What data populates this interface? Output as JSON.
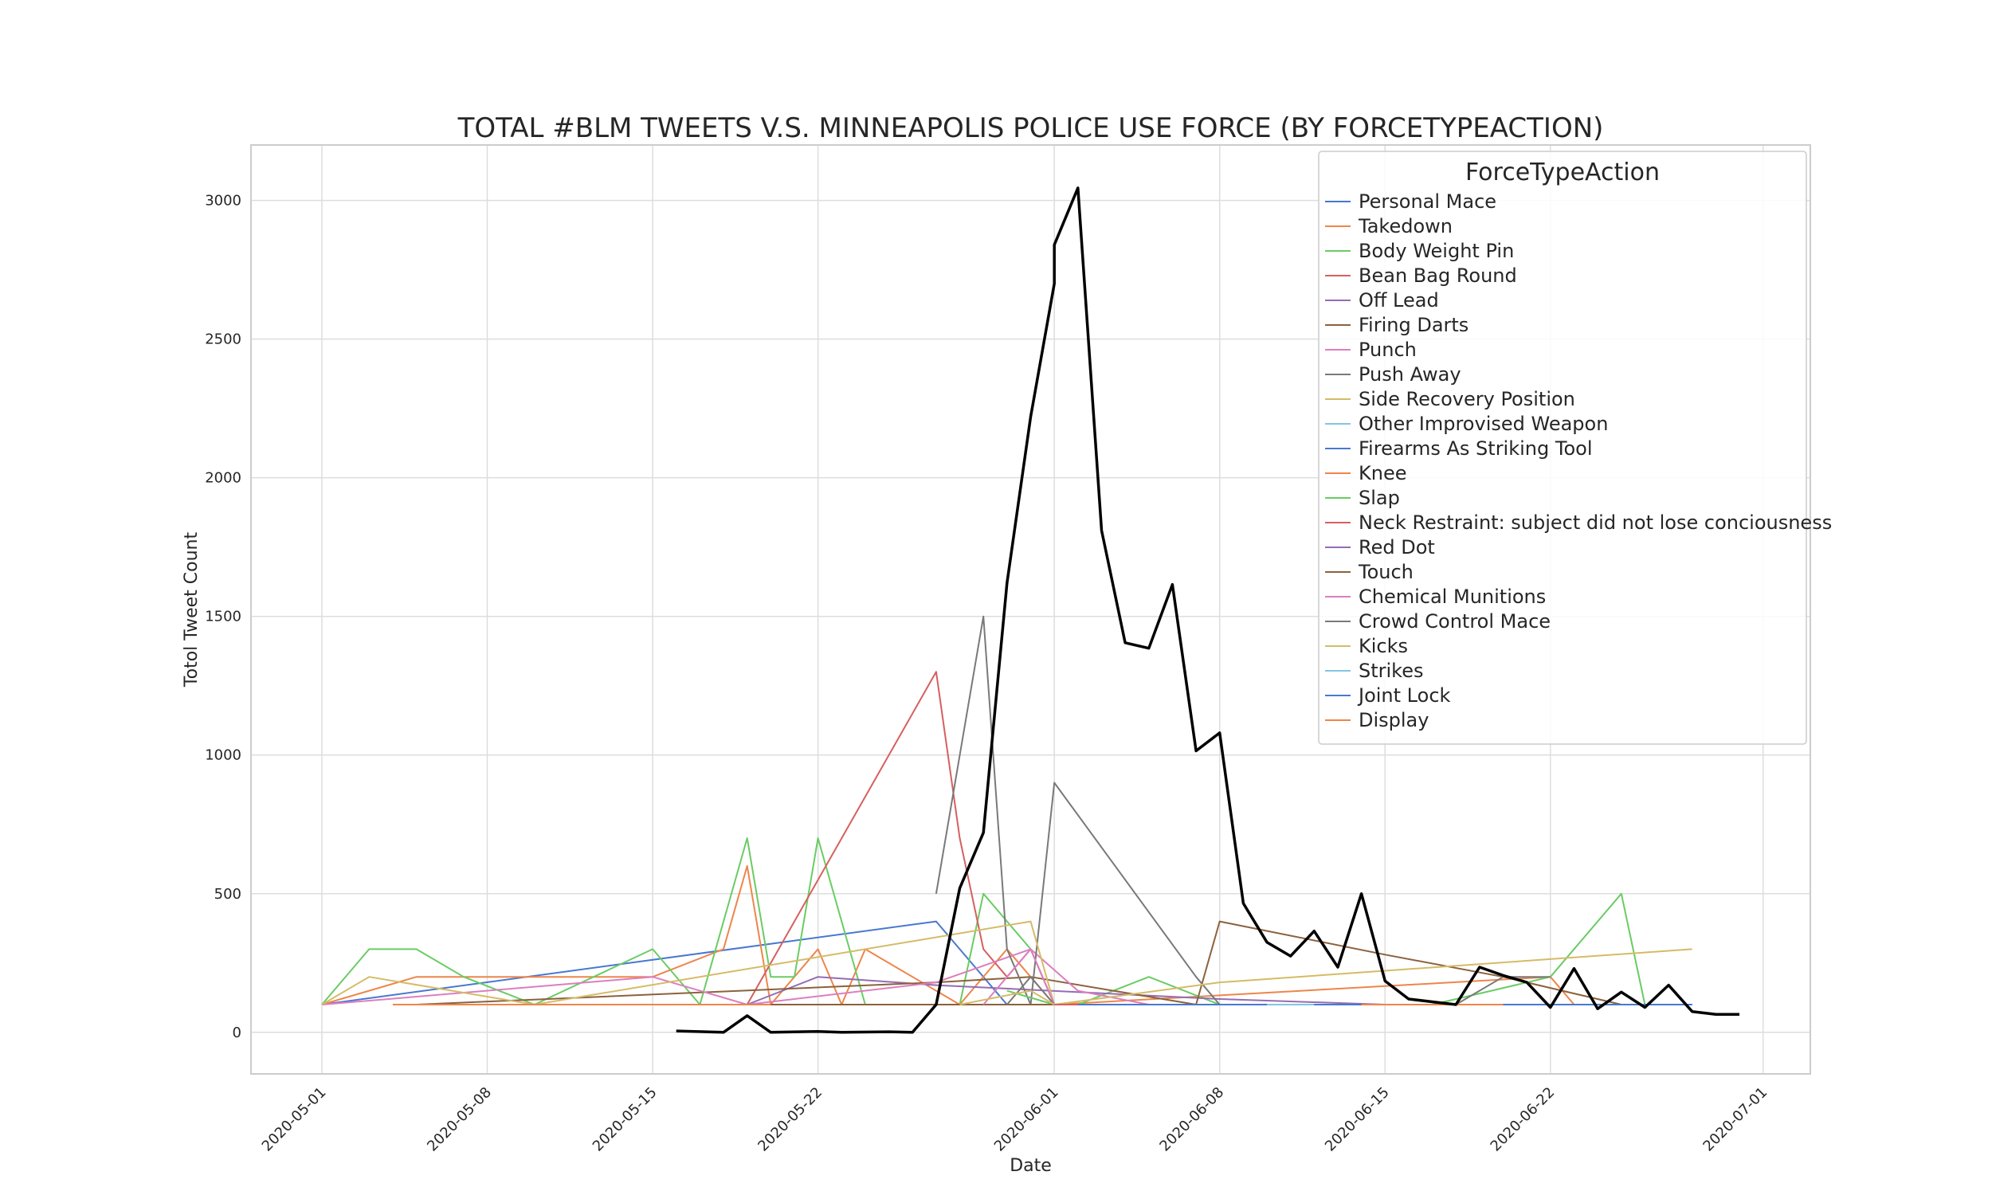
{
  "chart_data": {
    "type": "line",
    "title": "TOTAL #BLM TWEETS V.S. MINNEAPOLIS POLICE USE FORCE (BY FORCETYPEACTION)",
    "xlabel": "Date",
    "ylabel": "Totol Tweet Count",
    "x_ticks": [
      "2020-05-01",
      "2020-05-08",
      "2020-05-15",
      "2020-05-22",
      "2020-06-01",
      "2020-06-08",
      "2020-06-15",
      "2020-06-22",
      "2020-07-01"
    ],
    "y_ticks": [
      0,
      500,
      1000,
      1500,
      2000,
      2500,
      3000
    ],
    "xlim": [
      "2020-04-28",
      "2020-07-03"
    ],
    "ylim": [
      -150,
      3200
    ],
    "grid": true,
    "legend": {
      "title": "ForceTypeAction",
      "placement": "top-right"
    },
    "series": [
      {
        "name": "Personal Mace",
        "color": "#4878d0",
        "points": [
          [
            "2020-05-01",
            100
          ],
          [
            "2020-05-27",
            400
          ],
          [
            "2020-05-30",
            100
          ],
          [
            "2020-06-28",
            100
          ]
        ]
      },
      {
        "name": "Takedown",
        "color": "#ee854a",
        "points": [
          [
            "2020-05-01",
            100
          ],
          [
            "2020-05-05",
            200
          ],
          [
            "2020-05-15",
            200
          ],
          [
            "2020-05-18",
            300
          ],
          [
            "2020-05-19",
            600
          ],
          [
            "2020-05-20",
            100
          ],
          [
            "2020-05-22",
            300
          ],
          [
            "2020-05-23",
            100
          ],
          [
            "2020-05-24",
            300
          ],
          [
            "2020-05-26",
            200
          ],
          [
            "2020-05-28",
            100
          ],
          [
            "2020-05-30",
            300
          ],
          [
            "2020-06-01",
            100
          ],
          [
            "2020-06-22",
            200
          ],
          [
            "2020-06-23",
            100
          ]
        ]
      },
      {
        "name": "Body Weight Pin",
        "color": "#6acc64",
        "points": [
          [
            "2020-05-01",
            100
          ],
          [
            "2020-05-03",
            300
          ],
          [
            "2020-05-05",
            300
          ],
          [
            "2020-05-07",
            200
          ],
          [
            "2020-05-10",
            100
          ],
          [
            "2020-05-15",
            300
          ],
          [
            "2020-05-17",
            100
          ],
          [
            "2020-05-19",
            700
          ],
          [
            "2020-05-20",
            200
          ],
          [
            "2020-05-21",
            200
          ],
          [
            "2020-05-22",
            700
          ],
          [
            "2020-05-24",
            100
          ],
          [
            "2020-05-28",
            100
          ],
          [
            "2020-05-29",
            500
          ],
          [
            "2020-05-31",
            300
          ],
          [
            "2020-06-01",
            100
          ],
          [
            "2020-06-02",
            100
          ],
          [
            "2020-06-05",
            200
          ],
          [
            "2020-06-08",
            100
          ],
          [
            "2020-06-17",
            100
          ],
          [
            "2020-06-22",
            200
          ],
          [
            "2020-06-25",
            500
          ],
          [
            "2020-06-26",
            100
          ]
        ]
      },
      {
        "name": "Bean Bag Round",
        "color": "#d65f5f",
        "points": [
          [
            "2020-05-19",
            100
          ],
          [
            "2020-05-27",
            1300
          ],
          [
            "2020-05-28",
            700
          ],
          [
            "2020-05-29",
            300
          ],
          [
            "2020-05-30",
            200
          ],
          [
            "2020-05-31",
            300
          ],
          [
            "2020-06-01",
            100
          ]
        ]
      },
      {
        "name": "Off Lead",
        "color": "#956cb4",
        "points": [
          [
            "2020-05-19",
            100
          ],
          [
            "2020-05-22",
            200
          ],
          [
            "2020-05-27",
            170
          ],
          [
            "2020-06-08",
            120
          ],
          [
            "2020-06-15",
            100
          ],
          [
            "2020-06-28",
            100
          ]
        ]
      },
      {
        "name": "Firing Darts",
        "color": "#8c613c",
        "points": [
          [
            "2020-05-05",
            100
          ],
          [
            "2020-05-27",
            180
          ],
          [
            "2020-05-31",
            200
          ],
          [
            "2020-06-07",
            100
          ],
          [
            "2020-06-08",
            400
          ],
          [
            "2020-06-15",
            280
          ],
          [
            "2020-06-20",
            200
          ],
          [
            "2020-06-25",
            100
          ]
        ]
      },
      {
        "name": "Punch",
        "color": "#dc7ec0",
        "points": [
          [
            "2020-05-01",
            100
          ],
          [
            "2020-05-15",
            200
          ],
          [
            "2020-05-19",
            100
          ],
          [
            "2020-05-27",
            180
          ],
          [
            "2020-05-31",
            300
          ],
          [
            "2020-06-02",
            150
          ],
          [
            "2020-06-05",
            100
          ]
        ]
      },
      {
        "name": "Push Away",
        "color": "#797979",
        "points": [
          [
            "2020-05-27",
            500
          ],
          [
            "2020-05-29",
            1500
          ],
          [
            "2020-05-30",
            300
          ],
          [
            "2020-05-31",
            100
          ],
          [
            "2020-06-01",
            900
          ],
          [
            "2020-06-07",
            200
          ],
          [
            "2020-06-08",
            100
          ],
          [
            "2020-06-18",
            100
          ],
          [
            "2020-06-20",
            200
          ],
          [
            "2020-06-22",
            200
          ]
        ]
      },
      {
        "name": "Side Recovery Position",
        "color": "#d5bb67",
        "points": [
          [
            "2020-05-01",
            100
          ],
          [
            "2020-05-03",
            200
          ],
          [
            "2020-05-10",
            100
          ],
          [
            "2020-05-31",
            400
          ],
          [
            "2020-06-01",
            100
          ],
          [
            "2020-06-08",
            180
          ],
          [
            "2020-06-28",
            300
          ]
        ]
      },
      {
        "name": "Other Improvised Weapon",
        "color": "#82c6e2",
        "points": [
          [
            "2020-05-08",
            100
          ],
          [
            "2020-05-28",
            100
          ]
        ]
      },
      {
        "name": "Firearms As Striking Tool",
        "color": "#4878d0",
        "points": [
          [
            "2020-05-17",
            100
          ],
          [
            "2020-06-28",
            100
          ]
        ]
      },
      {
        "name": "Knee",
        "color": "#ee854a",
        "points": [
          [
            "2020-05-04",
            100
          ],
          [
            "2020-05-28",
            100
          ]
        ]
      },
      {
        "name": "Slap",
        "color": "#6acc64",
        "points": [
          [
            "2020-05-30",
            150
          ],
          [
            "2020-06-01",
            100
          ]
        ]
      },
      {
        "name": "Neck Restraint: subject did not lose conciousness",
        "color": "#d65f5f",
        "points": [
          [
            "2020-05-29",
            100
          ],
          [
            "2020-06-02",
            100
          ]
        ]
      },
      {
        "name": "Red Dot",
        "color": "#956cb4",
        "points": [
          [
            "2020-05-30",
            100
          ],
          [
            "2020-06-01",
            100
          ]
        ]
      },
      {
        "name": "Touch",
        "color": "#8c613c",
        "points": [
          [
            "2020-05-20",
            100
          ],
          [
            "2020-06-01",
            100
          ]
        ]
      },
      {
        "name": "Chemical Munitions",
        "color": "#dc7ec0",
        "points": [
          [
            "2020-05-29",
            100
          ],
          [
            "2020-05-31",
            300
          ],
          [
            "2020-06-01",
            100
          ]
        ]
      },
      {
        "name": "Crowd Control Mace",
        "color": "#797979",
        "points": [
          [
            "2020-05-30",
            100
          ],
          [
            "2020-05-31",
            200
          ],
          [
            "2020-06-01",
            100
          ]
        ]
      },
      {
        "name": "Kicks",
        "color": "#d5bb67",
        "points": [
          [
            "2020-05-28",
            100
          ],
          [
            "2020-05-31",
            150
          ],
          [
            "2020-06-01",
            100
          ]
        ]
      },
      {
        "name": "Strikes",
        "color": "#82c6e2",
        "points": [
          [
            "2020-06-10",
            100
          ],
          [
            "2020-06-14",
            100
          ]
        ]
      },
      {
        "name": "Joint Lock",
        "color": "#4878d0",
        "points": [
          [
            "2020-06-12",
            100
          ],
          [
            "2020-06-18",
            100
          ]
        ]
      },
      {
        "name": "Display",
        "color": "#ee854a",
        "points": [
          [
            "2020-06-14",
            100
          ],
          [
            "2020-06-20",
            100
          ]
        ]
      },
      {
        "color": "#000000",
        "width": 3.5,
        "points": [
          [
            "2020-05-16",
            5
          ],
          [
            "2020-05-18",
            0
          ],
          [
            "2020-05-19",
            60
          ],
          [
            "2020-05-20",
            0
          ],
          [
            "2020-05-22",
            3
          ],
          [
            "2020-05-23",
            0
          ],
          [
            "2020-05-25",
            2
          ],
          [
            "2020-05-26",
            0
          ],
          [
            "2020-05-27",
            100
          ],
          [
            "2020-05-28",
            520
          ],
          [
            "2020-05-29",
            720
          ],
          [
            "2020-05-30",
            1620
          ],
          [
            "2020-05-31",
            2220
          ],
          [
            "2020-06-01",
            2700
          ],
          [
            "2020-06-01",
            2840
          ],
          [
            "2020-06-02",
            3045
          ],
          [
            "2020-06-03",
            1810
          ],
          [
            "2020-06-04",
            1405
          ],
          [
            "2020-06-05",
            1385
          ],
          [
            "2020-06-06",
            1615
          ],
          [
            "2020-06-07",
            1015
          ],
          [
            "2020-06-08",
            1080
          ],
          [
            "2020-06-09",
            465
          ],
          [
            "2020-06-10",
            325
          ],
          [
            "2020-06-11",
            275
          ],
          [
            "2020-06-12",
            365
          ],
          [
            "2020-06-13",
            235
          ],
          [
            "2020-06-14",
            500
          ],
          [
            "2020-06-15",
            185
          ],
          [
            "2020-06-16",
            120
          ],
          [
            "2020-06-17",
            110
          ],
          [
            "2020-06-18",
            100
          ],
          [
            "2020-06-19",
            235
          ],
          [
            "2020-06-20",
            205
          ],
          [
            "2020-06-21",
            180
          ],
          [
            "2020-06-22",
            90
          ],
          [
            "2020-06-23",
            230
          ],
          [
            "2020-06-24",
            85
          ],
          [
            "2020-06-25",
            145
          ],
          [
            "2020-06-26",
            90
          ],
          [
            "2020-06-27",
            170
          ],
          [
            "2020-06-28",
            75
          ],
          [
            "2020-06-29",
            65
          ],
          [
            "2020-06-30",
            65
          ]
        ]
      }
    ]
  }
}
